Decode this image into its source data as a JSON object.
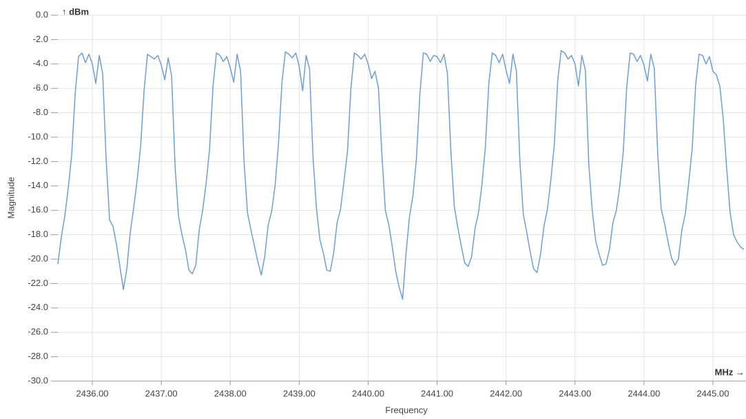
{
  "chart_data": {
    "type": "line",
    "y_unit_label": "↑ dBm",
    "x_unit_label": "MHz →",
    "ylabel": "Magnitude",
    "xlabel": "Frequency",
    "color": "#6a9fd8",
    "grid": true,
    "xlim": [
      2435.5,
      2445.48
    ],
    "ylim": [
      -30,
      0
    ],
    "xticks": [
      {
        "value": 2436,
        "label": "2436.00"
      },
      {
        "value": 2437,
        "label": "2437.00"
      },
      {
        "value": 2438,
        "label": "2438.00"
      },
      {
        "value": 2439,
        "label": "2439.00"
      },
      {
        "value": 2440,
        "label": "2440.00"
      },
      {
        "value": 2441,
        "label": "2441.00"
      },
      {
        "value": 2442,
        "label": "2442.00"
      },
      {
        "value": 2443,
        "label": "2443.00"
      },
      {
        "value": 2444,
        "label": "2444.00"
      },
      {
        "value": 2445,
        "label": "2445.00"
      }
    ],
    "yticks": [
      {
        "value": 0,
        "label": "0.0"
      },
      {
        "value": -2,
        "label": "-2.0"
      },
      {
        "value": -4,
        "label": "-4.0"
      },
      {
        "value": -6,
        "label": "-6.0"
      },
      {
        "value": -8,
        "label": "-8.0"
      },
      {
        "value": -10,
        "label": "-10.0"
      },
      {
        "value": -12,
        "label": "-12.0"
      },
      {
        "value": -14,
        "label": "-14.0"
      },
      {
        "value": -16,
        "label": "-16.0"
      },
      {
        "value": -18,
        "label": "-18.0"
      },
      {
        "value": -20,
        "label": "-20.0"
      },
      {
        "value": -22,
        "label": "-22.0"
      },
      {
        "value": -24,
        "label": "-24.0"
      },
      {
        "value": -26,
        "label": "-26.0"
      },
      {
        "value": -28,
        "label": "-28.0"
      },
      {
        "value": -30,
        "label": "-30.0"
      }
    ],
    "x": [
      2435.5,
      2435.55,
      2435.6,
      2435.65,
      2435.7,
      2435.75,
      2435.8,
      2435.85,
      2435.9,
      2435.95,
      2436,
      2436.05,
      2436.1,
      2436.15,
      2436.2,
      2436.25,
      2436.3,
      2436.35,
      2436.4,
      2436.45,
      2436.5,
      2436.55,
      2436.6,
      2436.65,
      2436.7,
      2436.75,
      2436.8,
      2436.85,
      2436.9,
      2436.95,
      2437,
      2437.05,
      2437.1,
      2437.15,
      2437.2,
      2437.25,
      2437.3,
      2437.35,
      2437.4,
      2437.45,
      2437.5,
      2437.55,
      2437.6,
      2437.65,
      2437.7,
      2437.75,
      2437.8,
      2437.85,
      2437.9,
      2437.95,
      2438,
      2438.05,
      2438.1,
      2438.15,
      2438.2,
      2438.25,
      2438.3,
      2438.35,
      2438.4,
      2438.45,
      2438.5,
      2438.55,
      2438.6,
      2438.65,
      2438.7,
      2438.75,
      2438.8,
      2438.85,
      2438.9,
      2438.95,
      2439,
      2439.05,
      2439.1,
      2439.15,
      2439.2,
      2439.25,
      2439.3,
      2439.35,
      2439.4,
      2439.45,
      2439.5,
      2439.55,
      2439.6,
      2439.65,
      2439.7,
      2439.75,
      2439.8,
      2439.85,
      2439.9,
      2439.95,
      2440,
      2440.05,
      2440.1,
      2440.15,
      2440.2,
      2440.25,
      2440.3,
      2440.35,
      2440.4,
      2440.45,
      2440.5,
      2440.55,
      2440.6,
      2440.65,
      2440.7,
      2440.75,
      2440.8,
      2440.85,
      2440.9,
      2440.95,
      2441,
      2441.05,
      2441.1,
      2441.15,
      2441.2,
      2441.25,
      2441.3,
      2441.35,
      2441.4,
      2441.45,
      2441.5,
      2441.55,
      2441.6,
      2441.65,
      2441.7,
      2441.75,
      2441.8,
      2441.85,
      2441.9,
      2441.95,
      2442,
      2442.05,
      2442.1,
      2442.15,
      2442.2,
      2442.25,
      2442.3,
      2442.35,
      2442.4,
      2442.45,
      2442.5,
      2442.55,
      2442.6,
      2442.65,
      2442.7,
      2442.75,
      2442.8,
      2442.85,
      2442.9,
      2442.95,
      2443,
      2443.05,
      2443.1,
      2443.15,
      2443.2,
      2443.25,
      2443.3,
      2443.35,
      2443.4,
      2443.45,
      2443.5,
      2443.55,
      2443.6,
      2443.65,
      2443.7,
      2443.75,
      2443.8,
      2443.85,
      2443.9,
      2443.95,
      2444,
      2444.05,
      2444.1,
      2444.15,
      2444.2,
      2444.25,
      2444.3,
      2444.35,
      2444.4,
      2444.45,
      2444.5,
      2444.55,
      2444.6,
      2444.65,
      2444.7,
      2444.75,
      2444.8,
      2444.85,
      2444.9,
      2444.95,
      2445,
      2445.05,
      2445.1,
      2445.15,
      2445.2,
      2445.25,
      2445.3,
      2445.35,
      2445.4,
      2445.45
    ],
    "values": [
      -20.4,
      -18.2,
      -16.5,
      -14.2,
      -11.5,
      -6.5,
      -3.4,
      -3.1,
      -3.9,
      -3.2,
      -4.0,
      -5.6,
      -3.3,
      -4.8,
      -11.8,
      -16.8,
      -17.3,
      -18.8,
      -20.6,
      -22.5,
      -20.8,
      -17.8,
      -15.8,
      -13.5,
      -10.8,
      -6.2,
      -3.2,
      -3.4,
      -3.6,
      -3.3,
      -4.1,
      -5.3,
      -3.5,
      -5.0,
      -12.4,
      -16.5,
      -18.0,
      -19.2,
      -20.9,
      -21.2,
      -20.5,
      -17.6,
      -16.0,
      -13.8,
      -11.0,
      -5.8,
      -3.1,
      -3.3,
      -3.8,
      -3.4,
      -4.3,
      -5.5,
      -3.2,
      -4.6,
      -12.0,
      -16.2,
      -17.6,
      -18.9,
      -20.2,
      -21.3,
      -19.8,
      -17.2,
      -16.1,
      -14.0,
      -10.5,
      -5.5,
      -3.0,
      -3.2,
      -3.5,
      -3.1,
      -4.2,
      -6.2,
      -3.3,
      -4.4,
      -11.6,
      -15.8,
      -18.4,
      -19.5,
      -20.9,
      -21.0,
      -19.5,
      -17.0,
      -15.9,
      -13.6,
      -11.2,
      -6.0,
      -3.1,
      -3.3,
      -3.6,
      -3.2,
      -4.0,
      -5.2,
      -4.6,
      -6.0,
      -11.5,
      -16.0,
      -17.2,
      -19.0,
      -21.0,
      -22.3,
      -23.3,
      -19.5,
      -16.5,
      -14.8,
      -11.8,
      -6.5,
      -3.1,
      -3.2,
      -3.8,
      -3.3,
      -3.4,
      -3.9,
      -3.2,
      -4.8,
      -11.2,
      -15.7,
      -17.4,
      -18.9,
      -20.3,
      -20.6,
      -19.8,
      -17.5,
      -16.2,
      -13.9,
      -10.8,
      -5.6,
      -3.1,
      -3.3,
      -3.9,
      -3.2,
      -4.5,
      -5.6,
      -3.2,
      -4.6,
      -11.9,
      -16.3,
      -17.8,
      -19.4,
      -20.8,
      -21.1,
      -19.6,
      -17.3,
      -15.9,
      -13.5,
      -10.6,
      -5.3,
      -2.9,
      -3.1,
      -3.6,
      -3.3,
      -4.0,
      -5.8,
      -3.3,
      -4.5,
      -12.2,
      -16.0,
      -18.5,
      -19.6,
      -20.5,
      -20.4,
      -19.2,
      -17.0,
      -16.0,
      -14.0,
      -11.2,
      -5.9,
      -3.1,
      -3.2,
      -3.8,
      -3.3,
      -4.1,
      -5.4,
      -3.2,
      -4.4,
      -11.4,
      -15.9,
      -17.1,
      -18.6,
      -19.9,
      -20.5,
      -20.0,
      -17.6,
      -16.3,
      -13.7,
      -10.9,
      -5.7,
      -3.2,
      -3.3,
      -4.0,
      -3.4,
      -4.6,
      -4.9,
      -5.8,
      -8.5,
      -12.6,
      -16.2,
      -18.0,
      -18.6,
      -19.0,
      -19.2
    ]
  }
}
